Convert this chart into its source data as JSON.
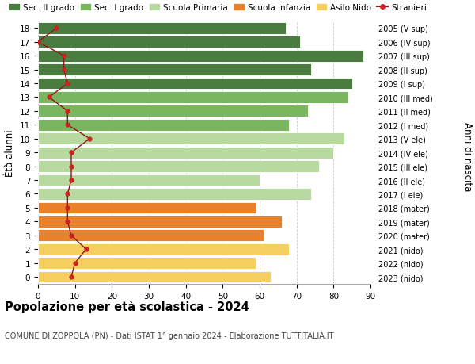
{
  "ages": [
    18,
    17,
    16,
    15,
    14,
    13,
    12,
    11,
    10,
    9,
    8,
    7,
    6,
    5,
    4,
    3,
    2,
    1,
    0
  ],
  "bar_values": [
    67,
    71,
    88,
    74,
    85,
    84,
    73,
    68,
    83,
    80,
    76,
    60,
    74,
    59,
    66,
    61,
    68,
    59,
    63
  ],
  "bar_colors": [
    "#4a7c40",
    "#4a7c40",
    "#4a7c40",
    "#4a7c40",
    "#4a7c40",
    "#7ab560",
    "#7ab560",
    "#7ab560",
    "#b8d9a0",
    "#b8d9a0",
    "#b8d9a0",
    "#b8d9a0",
    "#b8d9a0",
    "#e8812a",
    "#e8812a",
    "#e8812a",
    "#f5d060",
    "#f5d060",
    "#f5d060"
  ],
  "stranieri_values": [
    5,
    0,
    7,
    7,
    8,
    3,
    8,
    8,
    14,
    9,
    9,
    9,
    8,
    8,
    8,
    9,
    13,
    10,
    9
  ],
  "right_labels": [
    "2005 (V sup)",
    "2006 (IV sup)",
    "2007 (III sup)",
    "2008 (II sup)",
    "2009 (I sup)",
    "2010 (III med)",
    "2011 (II med)",
    "2012 (I med)",
    "2013 (V ele)",
    "2014 (IV ele)",
    "2015 (III ele)",
    "2016 (II ele)",
    "2017 (I ele)",
    "2018 (mater)",
    "2019 (mater)",
    "2020 (mater)",
    "2021 (nido)",
    "2022 (nido)",
    "2023 (nido)"
  ],
  "ylabel_left": "Ètà alunni",
  "ylabel_right": "Anni di nascita",
  "xlim": [
    0,
    90
  ],
  "xticks": [
    0,
    10,
    20,
    30,
    40,
    50,
    60,
    70,
    80,
    90
  ],
  "title": "Popolazione per età scolastica - 2024",
  "subtitle": "COMUNE DI ZOPPOLA (PN) - Dati ISTAT 1° gennaio 2024 - Elaborazione TUTTITALIA.IT",
  "legend_labels": [
    "Sec. II grado",
    "Sec. I grado",
    "Scuola Primaria",
    "Scuola Infanzia",
    "Asilo Nido",
    "Stranieri"
  ],
  "legend_colors": [
    "#4a7c40",
    "#7ab560",
    "#b8d9a0",
    "#e8812a",
    "#f5d060",
    "#c0392b"
  ],
  "bg_color": "#ffffff",
  "grid_color": "#cccccc",
  "bar_edge_color": "#ffffff",
  "stranieri_line_color": "#8b1a1a",
  "stranieri_dot_color": "#cc2222"
}
